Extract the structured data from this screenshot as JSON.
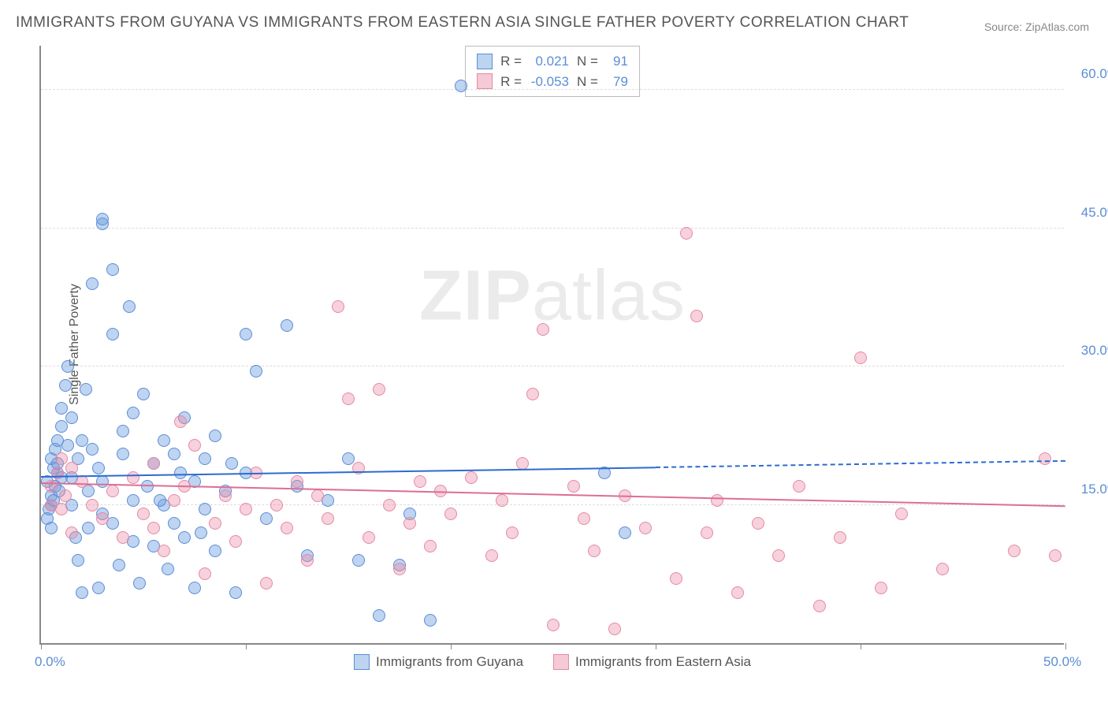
{
  "title": "IMMIGRANTS FROM GUYANA VS IMMIGRANTS FROM EASTERN ASIA SINGLE FATHER POVERTY CORRELATION CHART",
  "source": "Source: ZipAtlas.com",
  "y_axis_title": "Single Father Poverty",
  "watermark": {
    "bold": "ZIP",
    "rest": "atlas"
  },
  "chart": {
    "type": "scatter",
    "background_color": "#ffffff",
    "grid_color": "#dddddd",
    "axis_color": "#888888",
    "text_color": "#555555",
    "value_color": "#5b8dd6",
    "xlim": [
      0,
      50
    ],
    "ylim": [
      0,
      65
    ],
    "x_ticks": [
      0,
      10,
      20,
      30,
      40,
      50
    ],
    "x_tick_labels": {
      "0": "0.0%",
      "50": "50.0%"
    },
    "y_gridlines": [
      15,
      30,
      45,
      60
    ],
    "y_tick_labels": {
      "15": "15.0%",
      "30": "30.0%",
      "45": "45.0%",
      "60": "60.0%"
    },
    "marker_radius": 8,
    "marker_opacity": 0.45,
    "series": [
      {
        "name": "Immigrants from Guyana",
        "color_fill": "rgba(110,160,225,0.45)",
        "color_stroke": "#5b8dd6",
        "swatch_fill": "#bcd4f0",
        "swatch_border": "#5b8dd6",
        "R": "0.021",
        "N": "91",
        "trend": {
          "x1": 0,
          "y1": 18.0,
          "x2_solid": 30,
          "y2_solid": 19.0,
          "x2": 50,
          "y2": 19.7,
          "color": "#2d6bd0"
        },
        "points": [
          [
            0.3,
            17.5
          ],
          [
            0.5,
            16.0
          ],
          [
            0.6,
            19.0
          ],
          [
            0.5,
            15.0
          ],
          [
            0.8,
            18.5
          ],
          [
            0.4,
            14.5
          ],
          [
            0.7,
            17.0
          ],
          [
            0.6,
            15.5
          ],
          [
            0.5,
            20.0
          ],
          [
            0.9,
            16.5
          ],
          [
            1.0,
            18.0
          ],
          [
            0.3,
            13.5
          ],
          [
            0.7,
            21.0
          ],
          [
            0.5,
            12.5
          ],
          [
            0.8,
            19.5
          ],
          [
            1.2,
            28.0
          ],
          [
            1.3,
            30.0
          ],
          [
            1.5,
            24.5
          ],
          [
            1.8,
            9.0
          ],
          [
            2.0,
            5.5
          ],
          [
            2.0,
            22.0
          ],
          [
            2.2,
            27.5
          ],
          [
            2.5,
            39.0
          ],
          [
            2.5,
            21.0
          ],
          [
            2.8,
            6.0
          ],
          [
            3.0,
            17.5
          ],
          [
            3.0,
            14.0
          ],
          [
            3.0,
            45.5
          ],
          [
            3.0,
            46.0
          ],
          [
            3.5,
            40.5
          ],
          [
            3.5,
            33.5
          ],
          [
            3.5,
            13.0
          ],
          [
            3.8,
            8.5
          ],
          [
            4.0,
            20.5
          ],
          [
            4.3,
            36.5
          ],
          [
            4.5,
            11.0
          ],
          [
            4.5,
            15.5
          ],
          [
            4.5,
            25.0
          ],
          [
            4.8,
            6.5
          ],
          [
            5.0,
            27.0
          ],
          [
            5.2,
            17.0
          ],
          [
            5.5,
            19.5
          ],
          [
            5.5,
            10.5
          ],
          [
            6.0,
            22.0
          ],
          [
            6.0,
            15.0
          ],
          [
            6.2,
            8.0
          ],
          [
            6.5,
            13.0
          ],
          [
            6.5,
            20.5
          ],
          [
            7.0,
            24.5
          ],
          [
            7.0,
            11.5
          ],
          [
            7.5,
            17.5
          ],
          [
            7.5,
            6.0
          ],
          [
            8.0,
            20.0
          ],
          [
            8.0,
            14.5
          ],
          [
            8.5,
            10.0
          ],
          [
            8.5,
            22.5
          ],
          [
            9.0,
            16.5
          ],
          [
            9.5,
            5.5
          ],
          [
            10.0,
            33.5
          ],
          [
            10.0,
            18.5
          ],
          [
            10.5,
            29.5
          ],
          [
            11.0,
            13.5
          ],
          [
            12.0,
            34.5
          ],
          [
            12.5,
            17.0
          ],
          [
            13.0,
            9.5
          ],
          [
            14.0,
            15.5
          ],
          [
            15.0,
            20.0
          ],
          [
            15.5,
            9.0
          ],
          [
            16.5,
            3.0
          ],
          [
            17.5,
            8.5
          ],
          [
            18.0,
            14.0
          ],
          [
            19.0,
            2.5
          ],
          [
            20.5,
            60.5
          ],
          [
            27.5,
            18.5
          ],
          [
            28.5,
            12.0
          ],
          [
            1.0,
            23.5
          ],
          [
            1.0,
            25.5
          ],
          [
            1.5,
            18.0
          ],
          [
            1.5,
            15.0
          ],
          [
            1.8,
            20.0
          ],
          [
            2.3,
            16.5
          ],
          [
            2.3,
            12.5
          ],
          [
            2.8,
            19.0
          ],
          [
            0.8,
            22.0
          ],
          [
            1.3,
            21.5
          ],
          [
            1.7,
            11.5
          ],
          [
            4.0,
            23.0
          ],
          [
            5.8,
            15.5
          ],
          [
            6.8,
            18.5
          ],
          [
            7.8,
            12.0
          ],
          [
            9.3,
            19.5
          ]
        ]
      },
      {
        "name": "Immigrants from Eastern Asia",
        "color_fill": "rgba(235,140,165,0.40)",
        "color_stroke": "#e48aa6",
        "swatch_fill": "#f5c9d5",
        "swatch_border": "#e48aa6",
        "R": "-0.053",
        "N": "79",
        "trend": {
          "x1": 0,
          "y1": 17.3,
          "x2_solid": 50,
          "y2_solid": 14.8,
          "x2": 50,
          "y2": 14.8,
          "color": "#dd6e94"
        },
        "points": [
          [
            0.5,
            17.0
          ],
          [
            0.5,
            15.0
          ],
          [
            0.8,
            18.5
          ],
          [
            1.0,
            20.0
          ],
          [
            1.0,
            14.5
          ],
          [
            1.2,
            16.0
          ],
          [
            1.5,
            19.0
          ],
          [
            1.5,
            12.0
          ],
          [
            2.0,
            17.5
          ],
          [
            2.5,
            15.0
          ],
          [
            3.0,
            13.5
          ],
          [
            3.5,
            16.5
          ],
          [
            4.0,
            11.5
          ],
          [
            4.5,
            18.0
          ],
          [
            5.0,
            14.0
          ],
          [
            5.5,
            12.5
          ],
          [
            5.5,
            19.5
          ],
          [
            6.0,
            10.0
          ],
          [
            6.5,
            15.5
          ],
          [
            6.8,
            24.0
          ],
          [
            7.0,
            17.0
          ],
          [
            7.5,
            21.5
          ],
          [
            8.0,
            7.5
          ],
          [
            8.5,
            13.0
          ],
          [
            9.0,
            16.0
          ],
          [
            9.5,
            11.0
          ],
          [
            10.0,
            14.5
          ],
          [
            10.5,
            18.5
          ],
          [
            11.0,
            6.5
          ],
          [
            11.5,
            15.0
          ],
          [
            12.0,
            12.5
          ],
          [
            12.5,
            17.5
          ],
          [
            13.0,
            9.0
          ],
          [
            13.5,
            16.0
          ],
          [
            14.0,
            13.5
          ],
          [
            14.5,
            36.5
          ],
          [
            15.0,
            26.5
          ],
          [
            15.5,
            19.0
          ],
          [
            16.0,
            11.5
          ],
          [
            16.5,
            27.5
          ],
          [
            17.0,
            15.0
          ],
          [
            17.5,
            8.0
          ],
          [
            18.0,
            13.0
          ],
          [
            18.5,
            17.5
          ],
          [
            19.0,
            10.5
          ],
          [
            19.5,
            16.5
          ],
          [
            20.0,
            14.0
          ],
          [
            21.0,
            18.0
          ],
          [
            22.0,
            9.5
          ],
          [
            22.5,
            15.5
          ],
          [
            23.0,
            12.0
          ],
          [
            23.5,
            19.5
          ],
          [
            24.0,
            27.0
          ],
          [
            24.5,
            34.0
          ],
          [
            25.0,
            2.0
          ],
          [
            26.0,
            17.0
          ],
          [
            26.5,
            13.5
          ],
          [
            27.0,
            10.0
          ],
          [
            28.0,
            1.5
          ],
          [
            28.5,
            16.0
          ],
          [
            29.5,
            12.5
          ],
          [
            31.0,
            7.0
          ],
          [
            31.5,
            44.5
          ],
          [
            32.0,
            35.5
          ],
          [
            32.5,
            12.0
          ],
          [
            33.0,
            15.5
          ],
          [
            34.0,
            5.5
          ],
          [
            35.0,
            13.0
          ],
          [
            36.0,
            9.5
          ],
          [
            37.0,
            17.0
          ],
          [
            38.0,
            4.0
          ],
          [
            39.0,
            11.5
          ],
          [
            40.0,
            31.0
          ],
          [
            41.0,
            6.0
          ],
          [
            42.0,
            14.0
          ],
          [
            44.0,
            8.0
          ],
          [
            47.5,
            10.0
          ],
          [
            49.0,
            20.0
          ],
          [
            49.5,
            9.5
          ]
        ]
      }
    ]
  },
  "stats_labels": {
    "R": "R =",
    "N": "N ="
  }
}
